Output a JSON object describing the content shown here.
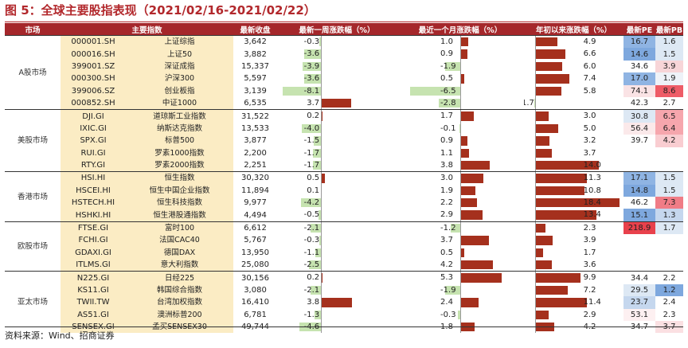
{
  "title": "图 5：全球主要股指表现（2021/02/16-2021/02/22）",
  "footer": "资料来源：Wind、招商证券",
  "headers": {
    "market": "市场",
    "index": "主要指数",
    "close": "最新收盘",
    "week": "最新一周涨跌幅（%）",
    "month": "最近一个月涨跌幅（%）",
    "ytd": "年初以来涨跌幅（%）",
    "pe": "最新PE",
    "pb": "最新PB"
  },
  "colors": {
    "header_bg": "#a5272b",
    "pos_bar": "#a5301d",
    "neg_bar": "#c6e3b0",
    "name_bg": "#fbecc4",
    "title": "#b2282c"
  },
  "groups": [
    {
      "market": "A股市场",
      "rows": [
        {
          "code": "000001.SH",
          "name": "上证综指",
          "close": "3,642",
          "week": "-0.3",
          "month": "1.0",
          "ytd": "4.9",
          "pe": "16.7",
          "pb": "1.6",
          "pe_color": "#8fb4e3",
          "pb_color": "#dde8f4"
        },
        {
          "code": "000016.SH",
          "name": "上证50",
          "close": "3,882",
          "week": "-3.6",
          "month": "0.9",
          "ytd": "6.6",
          "pe": "14.6",
          "pb": "1.5",
          "pe_color": "#7ea8de",
          "pb_color": "#dde8f4"
        },
        {
          "code": "399001.SZ",
          "name": "深证成指",
          "close": "15,337",
          "week": "-3.9",
          "month": "-1.9",
          "ytd": "6.0",
          "pe": "34.6",
          "pb": "3.9",
          "pe_color": "#ffffff",
          "pb_color": "#f7d5d8"
        },
        {
          "code": "000300.SH",
          "name": "沪深300",
          "close": "5,597",
          "week": "-3.6",
          "month": "0.5",
          "ytd": "7.4",
          "pe": "17.0",
          "pb": "1.9",
          "pe_color": "#8fb4e3",
          "pb_color": "#eef2f8"
        },
        {
          "code": "399006.SZ",
          "name": "创业板指",
          "close": "3,139",
          "week": "-8.1",
          "month": "-6.5",
          "ytd": "5.8",
          "pe": "74.1",
          "pb": "8.6",
          "pe_color": "#fae3e5",
          "pb_color": "#ee5c67"
        },
        {
          "code": "000852.SH",
          "name": "中证1000",
          "close": "6,535",
          "week": "3.7",
          "month": "-2.8",
          "ytd": "-1.7",
          "pe": "42.3",
          "pb": "2.7",
          "pe_color": "#ffffff",
          "pb_color": "#ffffff"
        }
      ]
    },
    {
      "market": "美股市场",
      "rows": [
        {
          "code": "DJI.GI",
          "name": "道琼斯工业指数",
          "close": "31,522",
          "week": "0.2",
          "month": "1.7",
          "ytd": "3.0",
          "pe": "30.8",
          "pb": "6.5",
          "pe_color": "#dde8f4",
          "pb_color": "#f6a6ad"
        },
        {
          "code": "IXIC.GI",
          "name": "纳斯达克指数",
          "close": "13,533",
          "week": "-4.0",
          "month": "-0.1",
          "ytd": "5.0",
          "pe": "56.4",
          "pb": "6.4",
          "pe_color": "#fbe9ea",
          "pb_color": "#f6a6ad"
        },
        {
          "code": "SPX.GI",
          "name": "标普500",
          "close": "3,877",
          "week": "-1.5",
          "month": "0.9",
          "ytd": "3.2",
          "pe": "39.7",
          "pb": "4.2",
          "pe_color": "#ffffff",
          "pb_color": "#f9cdd1"
        },
        {
          "code": "RUI.GI",
          "name": "罗素1000指数",
          "close": "2,200",
          "week": "-1.7",
          "month": "1.1",
          "ytd": "3.7",
          "pe": "",
          "pb": "",
          "pe_color": "#ffffff",
          "pb_color": "#ffffff"
        },
        {
          "code": "RTY.GI",
          "name": "罗素2000指数",
          "close": "2,251",
          "week": "-1.7",
          "month": "3.8",
          "ytd": "14.0",
          "pe": "",
          "pb": "",
          "pe_color": "#ffffff",
          "pb_color": "#ffffff"
        }
      ]
    },
    {
      "market": "香港市场",
      "rows": [
        {
          "code": "HSI.HI",
          "name": "恒生指数",
          "close": "30,320",
          "week": "0.5",
          "month": "3.0",
          "ytd": "11.3",
          "pe": "17.1",
          "pb": "1.5",
          "pe_color": "#8fb4e3",
          "pb_color": "#dde8f4"
        },
        {
          "code": "HSCEI.HI",
          "name": "恒生中国企业指数",
          "close": "11,894",
          "week": "0.1",
          "month": "1.9",
          "ytd": "10.8",
          "pe": "14.8",
          "pb": "1.5",
          "pe_color": "#7ea8de",
          "pb_color": "#dde8f4"
        },
        {
          "code": "HSTECH.HI",
          "name": "恒生科技指数",
          "close": "9,977",
          "week": "-4.2",
          "month": "2.2",
          "ytd": "18.4",
          "pe": "46.2",
          "pb": "7.3",
          "pe_color": "#ffffff",
          "pb_color": "#f07c86"
        },
        {
          "code": "HSHKI.HI",
          "name": "恒生港股通指数",
          "close": "4,494",
          "week": "-0.5",
          "month": "2.9",
          "ytd": "13.4",
          "pe": "15.1",
          "pb": "1.3",
          "pe_color": "#7ea8de",
          "pb_color": "#c5d7ee"
        }
      ]
    },
    {
      "market": "欧股市场",
      "rows": [
        {
          "code": "FTSE.GI",
          "name": "富时100",
          "close": "6,612",
          "week": "-2.1",
          "month": "-1.2",
          "ytd": "2.3",
          "pe": "218.9",
          "pb": "1.7",
          "pe_color": "#e8414c",
          "pb_color": "#dde8f4"
        },
        {
          "code": "FCHI.GI",
          "name": "法国CAC40",
          "close": "5,767",
          "week": "-0.3",
          "month": "3.7",
          "ytd": "3.9",
          "pe": "",
          "pb": "",
          "pe_color": "#ffffff",
          "pb_color": "#ffffff"
        },
        {
          "code": "GDAXI.GI",
          "name": "德国DAX",
          "close": "13,950",
          "week": "-1.1",
          "month": "0.5",
          "ytd": "1.7",
          "pe": "",
          "pb": "",
          "pe_color": "#ffffff",
          "pb_color": "#ffffff"
        },
        {
          "code": "ITLMS.GI",
          "name": "意大利指数",
          "close": "25,080",
          "week": "-2.5",
          "month": "4.2",
          "ytd": "3.6",
          "pe": "",
          "pb": "",
          "pe_color": "#ffffff",
          "pb_color": "#ffffff"
        }
      ]
    },
    {
      "market": "亚太市场",
      "rows": [
        {
          "code": "N225.GI",
          "name": "日经225",
          "close": "30,156",
          "week": "0.2",
          "month": "5.3",
          "ytd": "9.9",
          "pe": "34.4",
          "pb": "2.2",
          "pe_color": "#ffffff",
          "pb_color": "#ffffff"
        },
        {
          "code": "KS11.GI",
          "name": "韩国综合指数",
          "close": "3,080",
          "week": "-2.1",
          "month": "-1.9",
          "ytd": "7.2",
          "pe": "29.5",
          "pb": "1.2",
          "pe_color": "#dde8f4",
          "pb_color": "#7ea8de"
        },
        {
          "code": "TWII.TW",
          "name": "台湾加权指数",
          "close": "16,410",
          "week": "3.8",
          "month": "2.4",
          "ytd": "11.4",
          "pe": "23.7",
          "pb": "2.4",
          "pe_color": "#c5d7ee",
          "pb_color": "#ffffff"
        },
        {
          "code": "AS51.GI",
          "name": "澳洲标普200",
          "close": "6,781",
          "week": "-1.3",
          "month": "-0.3",
          "ytd": "2.9",
          "pe": "53.1",
          "pb": "2.3",
          "pe_color": "#fdf0f1",
          "pb_color": "#ffffff"
        },
        {
          "code": "SENSEX.GI",
          "name": "孟买SENSEX30",
          "close": "49,744",
          "week": "-4.6",
          "month": "1.8",
          "ytd": "4.2",
          "pe": "34.7",
          "pb": "3.7",
          "pe_color": "#ffffff",
          "pb_color": "#fbe0e2"
        }
      ]
    }
  ]
}
